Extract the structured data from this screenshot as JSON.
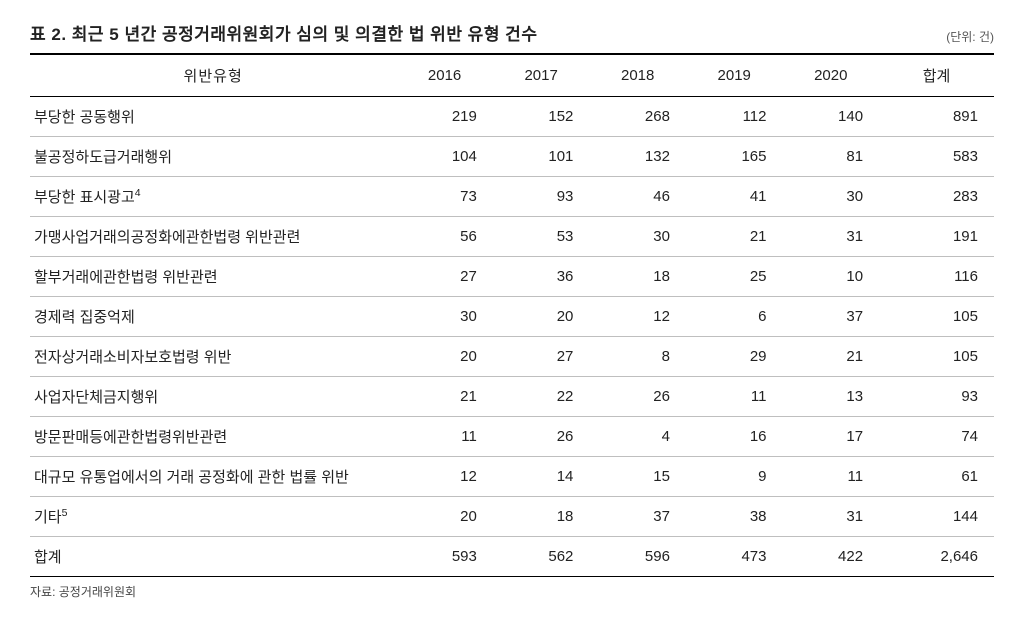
{
  "title_prefix": "표 2.",
  "title_text": "최근 5 년간 공정거래위원회가 심의 및 의결한 법 위반 유형 건수",
  "unit_label": "(단위: 건)",
  "columns": [
    "위반유형",
    "2016",
    "2017",
    "2018",
    "2019",
    "2020",
    "합계"
  ],
  "rows": [
    {
      "label": "부당한 공동행위",
      "sup": "",
      "v": [
        "219",
        "152",
        "268",
        "112",
        "140",
        "891"
      ]
    },
    {
      "label": "불공정하도급거래행위",
      "sup": "",
      "v": [
        "104",
        "101",
        "132",
        "165",
        "81",
        "583"
      ]
    },
    {
      "label": "부당한 표시광고",
      "sup": "4",
      "v": [
        "73",
        "93",
        "46",
        "41",
        "30",
        "283"
      ]
    },
    {
      "label": "가맹사업거래의공정화에관한법령 위반관련",
      "sup": "",
      "v": [
        "56",
        "53",
        "30",
        "21",
        "31",
        "191"
      ]
    },
    {
      "label": "할부거래에관한법령 위반관련",
      "sup": "",
      "v": [
        "27",
        "36",
        "18",
        "25",
        "10",
        "116"
      ]
    },
    {
      "label": "경제력 집중억제",
      "sup": "",
      "v": [
        "30",
        "20",
        "12",
        "6",
        "37",
        "105"
      ]
    },
    {
      "label": "전자상거래소비자보호법령 위반",
      "sup": "",
      "v": [
        "20",
        "27",
        "8",
        "29",
        "21",
        "105"
      ]
    },
    {
      "label": "사업자단체금지행위",
      "sup": "",
      "v": [
        "21",
        "22",
        "26",
        "11",
        "13",
        "93"
      ]
    },
    {
      "label": "방문판매등에관한법령위반관련",
      "sup": "",
      "v": [
        "11",
        "26",
        "4",
        "16",
        "17",
        "74"
      ]
    },
    {
      "label": "대규모 유통업에서의 거래 공정화에 관한 법률 위반",
      "sup": "",
      "v": [
        "12",
        "14",
        "15",
        "9",
        "11",
        "61"
      ]
    },
    {
      "label": "기타",
      "sup": "5",
      "v": [
        "20",
        "18",
        "37",
        "38",
        "31",
        "144"
      ]
    },
    {
      "label": "합계",
      "sup": "",
      "v": [
        "593",
        "562",
        "596",
        "473",
        "422",
        "2,646"
      ],
      "total": true
    }
  ],
  "source_label": "자료: 공정거래위원회",
  "style": {
    "border_top": "2px solid #000",
    "header_bottom": "1.5px solid #000",
    "row_border": "1px solid #bfbfbf",
    "text_color": "#222",
    "background": "#ffffff",
    "font_size_title": 17,
    "font_size_body": 15,
    "font_size_small": 12,
    "column_widths_pct": [
      38,
      10,
      10,
      10,
      10,
      10,
      12
    ],
    "cell_align": [
      "left",
      "right",
      "right",
      "right",
      "right",
      "right",
      "right"
    ]
  }
}
